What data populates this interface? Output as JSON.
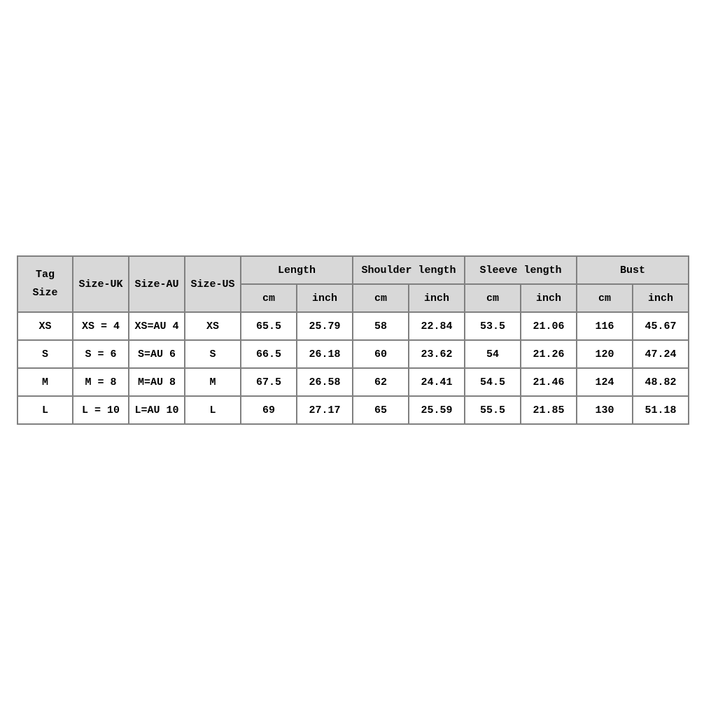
{
  "header": {
    "tag_line1": "Tag",
    "tag_line2": "Size",
    "size_uk": "Size-UK",
    "size_au": "Size-AU",
    "size_us": "Size-US",
    "groups": [
      {
        "label": "Length"
      },
      {
        "label": "Shoulder length"
      },
      {
        "label": "Sleeve length"
      },
      {
        "label": "Bust"
      }
    ],
    "unit_cm": "cm",
    "unit_inch": "inch"
  },
  "columns": [
    "tag-size",
    "size-uk",
    "size-au",
    "size-us",
    "length-cm",
    "length-inch",
    "shoulder-length-cm",
    "shoulder-length-inch",
    "sleeve-length-cm",
    "sleeve-length-inch",
    "bust-cm",
    "bust-inch"
  ],
  "rows": [
    {
      "tag": "XS",
      "uk": "XS = 4",
      "au": "XS=AU 4",
      "us": "XS",
      "values": [
        "65.5",
        "25.79",
        "58",
        "22.84",
        "53.5",
        "21.06",
        "116",
        "45.67"
      ]
    },
    {
      "tag": "S",
      "uk": "S = 6",
      "au": "S=AU 6",
      "us": "S",
      "values": [
        "66.5",
        "26.18",
        "60",
        "23.62",
        "54",
        "21.26",
        "120",
        "47.24"
      ]
    },
    {
      "tag": "M",
      "uk": "M = 8",
      "au": "M=AU 8",
      "us": "M",
      "values": [
        "67.5",
        "26.58",
        "62",
        "24.41",
        "54.5",
        "21.46",
        "124",
        "48.82"
      ]
    },
    {
      "tag": "L",
      "uk": "L = 10",
      "au": "L=AU 10",
      "us": "L",
      "values": [
        "69",
        "27.17",
        "65",
        "25.59",
        "55.5",
        "21.85",
        "130",
        "51.18"
      ]
    }
  ],
  "colors": {
    "page_bg": "#ffffff",
    "header_bg": "#d8d8d8",
    "border": "#808080",
    "text": "#000000"
  }
}
